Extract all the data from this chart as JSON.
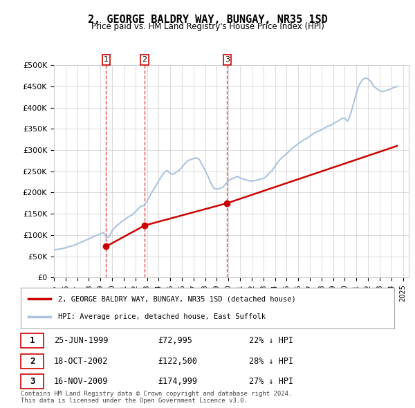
{
  "title": "2, GEORGE BALDRY WAY, BUNGAY, NR35 1SD",
  "subtitle": "Price paid vs. HM Land Registry's House Price Index (HPI)",
  "ylabel_ticks": [
    "£0",
    "£50K",
    "£100K",
    "£150K",
    "£200K",
    "£250K",
    "£300K",
    "£350K",
    "£400K",
    "£450K",
    "£500K"
  ],
  "ylim": [
    0,
    500000
  ],
  "ytick_vals": [
    0,
    50000,
    100000,
    150000,
    200000,
    250000,
    300000,
    350000,
    400000,
    450000,
    500000
  ],
  "xlim_start": 1995.0,
  "xlim_end": 2025.5,
  "hpi_color": "#aac4e0",
  "price_color": "#cc0000",
  "vline_color": "#cc0000",
  "purchase_dates": [
    1999.48,
    2002.79,
    2009.88
  ],
  "purchase_prices": [
    72995,
    122500,
    174999
  ],
  "purchase_labels": [
    "1",
    "2",
    "3"
  ],
  "legend_property": "2, GEORGE BALDRY WAY, BUNGAY, NR35 1SD (detached house)",
  "legend_hpi": "HPI: Average price, detached house, East Suffolk",
  "table_rows": [
    [
      "1",
      "25-JUN-1999",
      "£72,995",
      "22% ↓ HPI"
    ],
    [
      "2",
      "18-OCT-2002",
      "£122,500",
      "28% ↓ HPI"
    ],
    [
      "3",
      "16-NOV-2009",
      "£174,999",
      "27% ↓ HPI"
    ]
  ],
  "footnote": "Contains HM Land Registry data © Crown copyright and database right 2024.\nThis data is licensed under the Open Government Licence v3.0.",
  "background_color": "#ffffff",
  "grid_color": "#cccccc",
  "hpi_data_x": [
    1995.0,
    1995.25,
    1995.5,
    1995.75,
    1996.0,
    1996.25,
    1996.5,
    1996.75,
    1997.0,
    1997.25,
    1997.5,
    1997.75,
    1998.0,
    1998.25,
    1998.5,
    1998.75,
    1999.0,
    1999.25,
    1999.5,
    1999.75,
    2000.0,
    2000.25,
    2000.5,
    2000.75,
    2001.0,
    2001.25,
    2001.5,
    2001.75,
    2002.0,
    2002.25,
    2002.5,
    2002.75,
    2003.0,
    2003.25,
    2003.5,
    2003.75,
    2004.0,
    2004.25,
    2004.5,
    2004.75,
    2005.0,
    2005.25,
    2005.5,
    2005.75,
    2006.0,
    2006.25,
    2006.5,
    2006.75,
    2007.0,
    2007.25,
    2007.5,
    2007.75,
    2008.0,
    2008.25,
    2008.5,
    2008.75,
    2009.0,
    2009.25,
    2009.5,
    2009.75,
    2010.0,
    2010.25,
    2010.5,
    2010.75,
    2011.0,
    2011.25,
    2011.5,
    2011.75,
    2012.0,
    2012.25,
    2012.5,
    2012.75,
    2013.0,
    2013.25,
    2013.5,
    2013.75,
    2014.0,
    2014.25,
    2014.5,
    2014.75,
    2015.0,
    2015.25,
    2015.5,
    2015.75,
    2016.0,
    2016.25,
    2016.5,
    2016.75,
    2017.0,
    2017.25,
    2017.5,
    2017.75,
    2018.0,
    2018.25,
    2018.5,
    2018.75,
    2019.0,
    2019.25,
    2019.5,
    2019.75,
    2020.0,
    2020.25,
    2020.5,
    2020.75,
    2021.0,
    2021.25,
    2021.5,
    2021.75,
    2022.0,
    2022.25,
    2022.5,
    2022.75,
    2023.0,
    2023.25,
    2023.5,
    2023.75,
    2024.0,
    2024.25,
    2024.5
  ],
  "hpi_data_y": [
    65000,
    66000,
    67000,
    68000,
    70000,
    72000,
    74000,
    76000,
    79000,
    82000,
    85000,
    88000,
    91000,
    94000,
    97000,
    100000,
    103000,
    106000,
    94000,
    96000,
    110000,
    118000,
    124000,
    130000,
    135000,
    140000,
    144000,
    148000,
    155000,
    162000,
    168000,
    170000,
    180000,
    192000,
    205000,
    215000,
    228000,
    238000,
    248000,
    252000,
    245000,
    243000,
    248000,
    252000,
    260000,
    268000,
    275000,
    278000,
    280000,
    282000,
    278000,
    265000,
    252000,
    238000,
    222000,
    210000,
    208000,
    210000,
    212000,
    220000,
    228000,
    232000,
    235000,
    238000,
    235000,
    232000,
    230000,
    228000,
    227000,
    228000,
    230000,
    232000,
    233000,
    238000,
    246000,
    252000,
    262000,
    272000,
    280000,
    286000,
    292000,
    298000,
    305000,
    310000,
    315000,
    320000,
    325000,
    328000,
    333000,
    338000,
    342000,
    345000,
    348000,
    352000,
    356000,
    358000,
    362000,
    366000,
    370000,
    375000,
    375000,
    368000,
    385000,
    410000,
    435000,
    455000,
    465000,
    470000,
    468000,
    462000,
    450000,
    445000,
    440000,
    438000,
    440000,
    442000,
    445000,
    448000,
    450000
  ],
  "price_line_x": [
    1999.48,
    2002.79,
    2009.88,
    2024.5
  ],
  "price_line_y": [
    72995,
    122500,
    174999,
    310000
  ]
}
